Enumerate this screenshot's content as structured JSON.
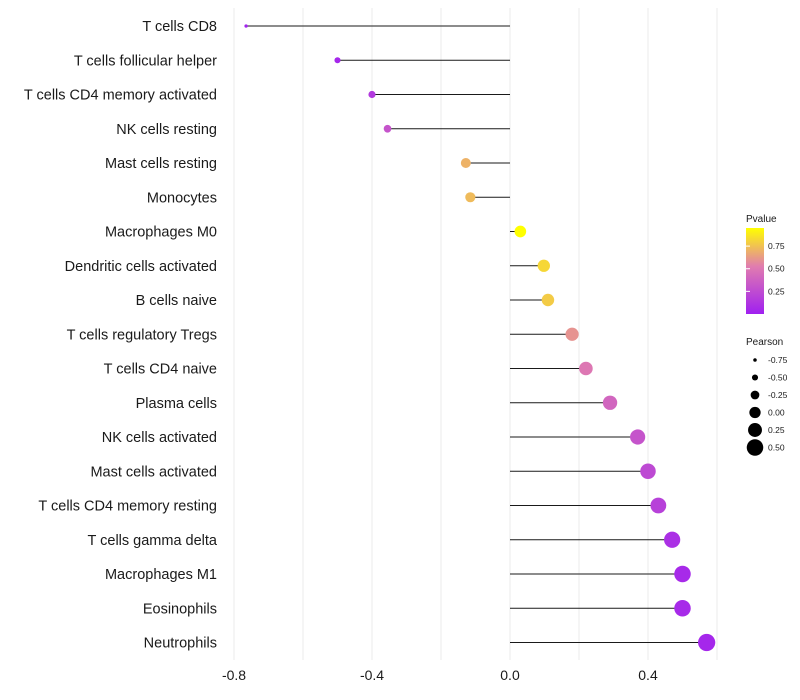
{
  "chart_data": {
    "type": "lollipop",
    "categories": [
      "T cells CD8",
      "T cells follicular helper",
      "T cells CD4 memory activated",
      "NK cells resting",
      "Mast cells resting",
      "Monocytes",
      "Macrophages M0",
      "Dendritic cells activated",
      "B cells naive",
      "T cells regulatory  Tregs",
      "T cells CD4 naive",
      "Plasma cells",
      "NK cells activated",
      "Mast cells activated",
      "T cells CD4 memory resting",
      "T cells gamma delta",
      "Macrophages M1",
      "Eosinophils",
      "Neutrophils"
    ],
    "pearson": [
      -0.765,
      -0.5,
      -0.4,
      -0.355,
      -0.128,
      -0.115,
      0.03,
      0.098,
      0.11,
      0.18,
      0.22,
      0.29,
      0.37,
      0.4,
      0.43,
      0.47,
      0.5,
      0.5,
      0.57
    ],
    "pvalue": [
      0.02,
      0.04,
      0.15,
      0.3,
      0.7,
      0.73,
      0.95,
      0.82,
      0.78,
      0.6,
      0.5,
      0.4,
      0.3,
      0.24,
      0.19,
      0.09,
      0.06,
      0.06,
      0.04
    ],
    "xlim": [
      -0.8,
      0.6
    ],
    "x_ticks": [
      -0.8,
      -0.4,
      0.0,
      0.4
    ],
    "x_tick_labels": [
      "-0.8",
      "-0.4",
      "0.0",
      "0.4"
    ],
    "grid": true,
    "legend_pvalue": {
      "title": "Pvalue",
      "ticks": [
        0.75,
        0.5,
        0.25
      ],
      "tick_labels": [
        "0.75",
        "0.50",
        "0.25"
      ],
      "range": [
        0.0,
        0.95
      ],
      "low_color": "#a020f0",
      "mid_color": "#e07bb0",
      "high_color": "#ffff00"
    },
    "legend_pearson": {
      "title": "Pearson",
      "values": [
        -0.75,
        -0.5,
        -0.25,
        0.0,
        0.25,
        0.5
      ],
      "labels": [
        "-0.75",
        "-0.50",
        "-0.25",
        "0.00",
        "0.25",
        "0.50"
      ]
    },
    "colors": {
      "stem": "#1a1a1a",
      "grid": "#ebebeb",
      "legend_dot": "#000000"
    }
  }
}
